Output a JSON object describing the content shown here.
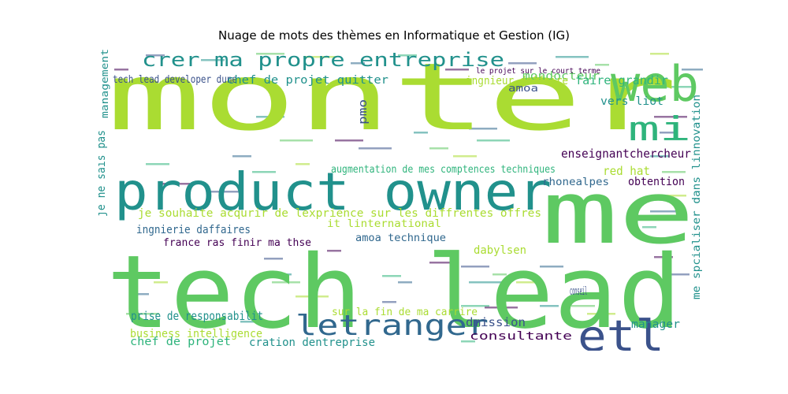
{
  "chart_data": {
    "type": "wordcloud",
    "title": "Nuage de mots des thèmes en Informatique et Gestion (IG)",
    "palette": "viridis",
    "words": [
      {
        "text": "monter",
        "weight": 1.0,
        "color": "#aadc32"
      },
      {
        "text": "tech lead",
        "weight": 0.97,
        "color": "#5ec962"
      },
      {
        "text": "me",
        "weight": 0.75,
        "color": "#5ec962"
      },
      {
        "text": "product owner",
        "weight": 0.6,
        "color": "#21918c"
      },
      {
        "text": "web",
        "weight": 0.45,
        "color": "#5ec962"
      },
      {
        "text": "mi",
        "weight": 0.38,
        "color": "#2fb47c"
      },
      {
        "text": "etl",
        "weight": 0.4,
        "color": "#3b528b"
      },
      {
        "text": "letranger",
        "weight": 0.32,
        "color": "#31688e"
      },
      {
        "text": "crer ma propre entreprise",
        "weight": 0.28,
        "color": "#21918c"
      },
      {
        "text": "tech lead developer dune",
        "weight": 0.15,
        "color": "#3b528b"
      },
      {
        "text": "chef de projet quitter",
        "weight": 0.16,
        "color": "#21918c"
      },
      {
        "text": "mondocteur",
        "weight": 0.14,
        "color": "#5ec962"
      },
      {
        "text": "faire grandir",
        "weight": 0.14,
        "color": "#2fb47c"
      },
      {
        "text": "le projet sur le court terme",
        "weight": 0.1,
        "color": "#440154"
      },
      {
        "text": "ingnieur daffaire",
        "weight": 0.15,
        "color": "#aadc32"
      },
      {
        "text": "amoa",
        "weight": 0.13,
        "color": "#3b528b"
      },
      {
        "text": "vers liot",
        "weight": 0.15,
        "color": "#21918c"
      },
      {
        "text": "enseignantchercheur",
        "weight": 0.14,
        "color": "#440154"
      },
      {
        "text": "augmentation de mes comptences techniques",
        "weight": 0.14,
        "color": "#2fb47c"
      },
      {
        "text": "red hat",
        "weight": 0.15,
        "color": "#aadc32"
      },
      {
        "text": "rhonealpes",
        "weight": 0.13,
        "color": "#31688e"
      },
      {
        "text": "obtention",
        "weight": 0.13,
        "color": "#440154"
      },
      {
        "text": "je souhaite acqurir de lexprience sur les diffrentes offres",
        "weight": 0.13,
        "color": "#aadc32"
      },
      {
        "text": "it linternational",
        "weight": 0.13,
        "color": "#aadc32"
      },
      {
        "text": "ingnierie daffaires",
        "weight": 0.14,
        "color": "#31688e"
      },
      {
        "text": "france ras finir ma thse",
        "weight": 0.13,
        "color": "#440154"
      },
      {
        "text": "amoa technique",
        "weight": 0.14,
        "color": "#31688e"
      },
      {
        "text": "dabylsen",
        "weight": 0.13,
        "color": "#aadc32"
      },
      {
        "text": "conseil",
        "weight": 0.13,
        "color": "#3b528b"
      },
      {
        "text": "prise de responsabilit",
        "weight": 0.14,
        "color": "#21918c"
      },
      {
        "text": "sur la fin de ma carrire",
        "weight": 0.13,
        "color": "#aadc32"
      },
      {
        "text": "dmission",
        "weight": 0.14,
        "color": "#3b528b"
      },
      {
        "text": "manager",
        "weight": 0.14,
        "color": "#21918c"
      },
      {
        "text": "business intelligence",
        "weight": 0.14,
        "color": "#aadc32"
      },
      {
        "text": "consultante",
        "weight": 0.14,
        "color": "#440154"
      },
      {
        "text": "chef de projet",
        "weight": 0.13,
        "color": "#2fb47c"
      },
      {
        "text": "cration dentreprise",
        "weight": 0.14,
        "color": "#21918c"
      },
      {
        "text": "pmo",
        "weight": 0.13,
        "color": "#3b528b"
      },
      {
        "text": "management",
        "weight": 0.1,
        "color": "#21918c"
      },
      {
        "text": "je ne sais pas",
        "weight": 0.13,
        "color": "#21918c"
      },
      {
        "text": "me spcialiser dans linnovation",
        "weight": 0.13,
        "color": "#21918c"
      }
    ]
  }
}
